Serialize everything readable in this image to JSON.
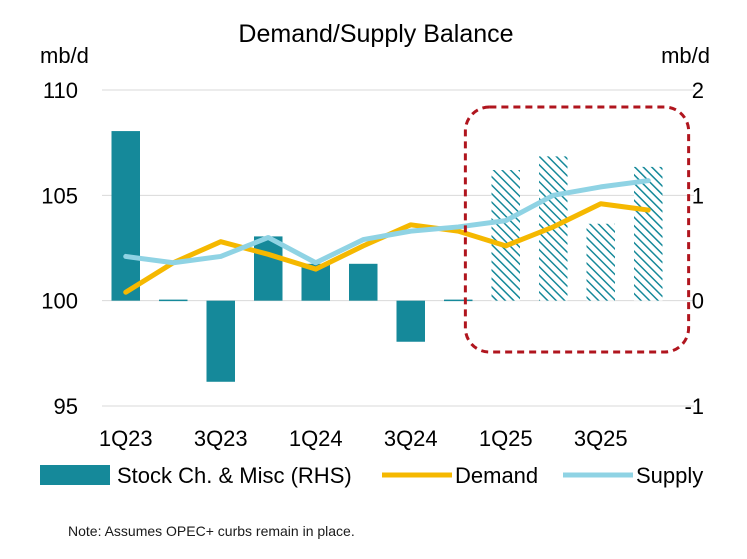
{
  "chart_data": {
    "type": "bar+line",
    "title": "Demand/Supply Balance",
    "left_axis": {
      "unit": "mb/d",
      "range": [
        95,
        110
      ],
      "ticks": [
        110,
        105,
        100,
        95
      ]
    },
    "right_axis": {
      "unit": "mb/d",
      "range": [
        -1,
        2
      ],
      "ticks": [
        2,
        1,
        0,
        -1
      ]
    },
    "categories": [
      "1Q23",
      "2Q23",
      "3Q23",
      "4Q23",
      "1Q24",
      "2Q24",
      "3Q24",
      "4Q24",
      "1Q25",
      "2Q25",
      "3Q25",
      "4Q25"
    ],
    "x_tick_labels": [
      "1Q23",
      "3Q23",
      "1Q24",
      "3Q24",
      "1Q25",
      "3Q25"
    ],
    "forecast_start_index": 8,
    "series": [
      {
        "name": "Stock Ch. & Misc (RHS)",
        "type": "bar",
        "axis": "right",
        "color": "#15899a",
        "values": [
          1.61,
          0.01,
          -0.77,
          0.61,
          0.35,
          0.35,
          -0.39,
          0.01,
          1.24,
          1.37,
          0.73,
          1.27
        ]
      },
      {
        "name": "Demand",
        "type": "line",
        "axis": "left",
        "color": "#f5b800",
        "values": [
          100.4,
          101.8,
          102.8,
          102.2,
          101.5,
          102.6,
          103.6,
          103.3,
          102.6,
          103.5,
          104.6,
          104.3
        ]
      },
      {
        "name": "Supply",
        "type": "line",
        "axis": "left",
        "color": "#8fd3e4",
        "values": [
          102.1,
          101.8,
          102.1,
          103.0,
          101.8,
          102.9,
          103.3,
          103.5,
          103.8,
          105.0,
          105.4,
          105.7
        ]
      }
    ],
    "annotation": {
      "type": "dashed-rounded-box",
      "color": "#b0151e",
      "covers_categories": "1Q25-4Q25"
    },
    "note": "Note: Assumes OPEC+ curbs remain in place."
  }
}
